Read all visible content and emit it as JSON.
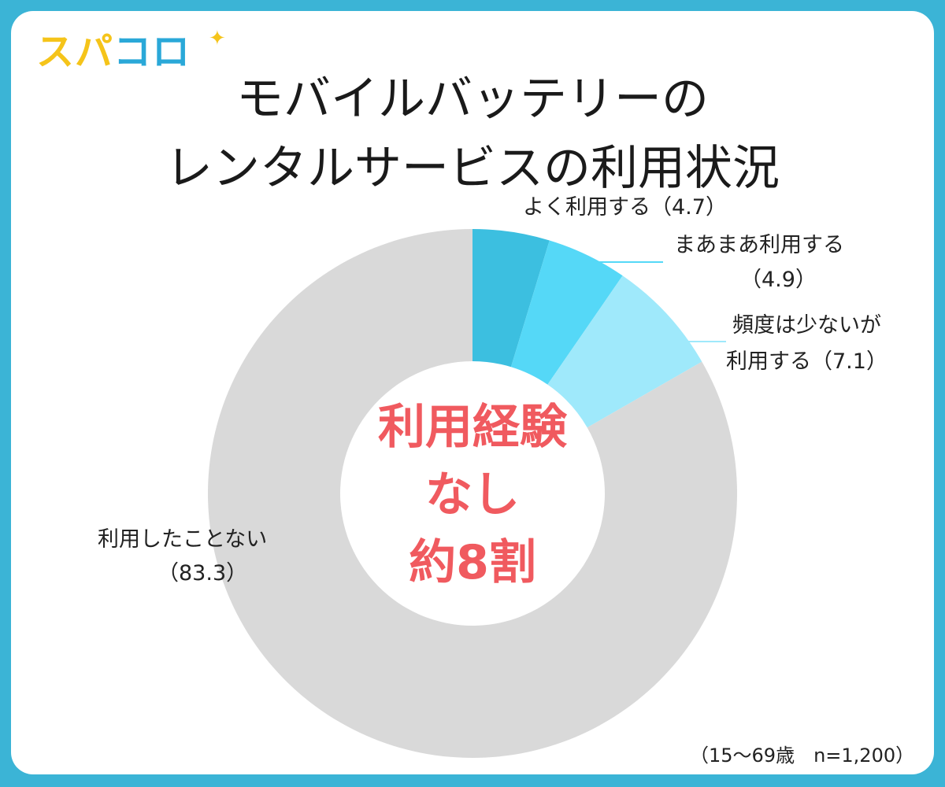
{
  "logo": {
    "part1": "スパ",
    "part2": "コロ"
  },
  "title": {
    "line1": "モバイルバッテリーの",
    "line2": "レンタルサービスの利用状況"
  },
  "center": {
    "line1": "利用経験",
    "line2": "なし",
    "line3": "約8割"
  },
  "note": "（15〜69歳　n=1,200）",
  "labels": {
    "often": "よく利用する（4.7）",
    "sometimes_l1": "まあまあ利用する",
    "sometimes_l2": "（4.9）",
    "rarely_l1": "頻度は少ないが",
    "rarely_l2": "利用する（7.1）",
    "never_l1": "利用したことない",
    "never_l2": "（83.3）"
  },
  "chart_data": {
    "type": "pie",
    "donut": true,
    "unit": "%",
    "categories": [
      "よく利用する",
      "まあまあ利用する",
      "頻度は少ないが利用する",
      "利用したことない"
    ],
    "values": [
      4.7,
      4.9,
      7.1,
      83.3
    ],
    "colors": [
      "#3cbfe0",
      "#55d8f7",
      "#9fe9fb",
      "#d9d9d9"
    ],
    "title": "モバイルバッテリーのレンタルサービスの利用状況",
    "legend": "none"
  }
}
